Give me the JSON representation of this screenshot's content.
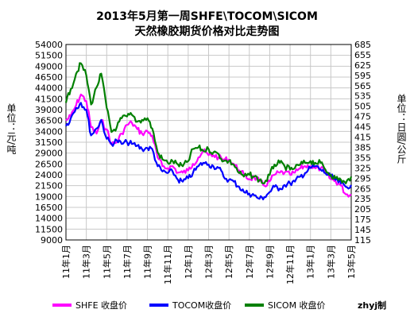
{
  "header": {
    "title_line1": "2013年5月第一周SHFE\\TOCOM\\SICOM",
    "title_line2": "天然橡胶期货价格对比走势图"
  },
  "colors": {
    "shfe": "#ff00ff",
    "tocom": "#0000ff",
    "sicom": "#008000",
    "grid": "#c8c8c8"
  },
  "legend": {
    "shfe_label": "SHFE 收盘价",
    "tocom_label": "TOCOM收盘价",
    "sicom_label": "SICOM 收盘价"
  },
  "credit": "zhyj制",
  "chart_data": {
    "type": "line",
    "title": "2013年5月第一周SHFE\\TOCOM\\SICOM 天然橡胶期货价格对比走势图",
    "ylabel": "单位：元/吨",
    "y2label": "单位：日圆/公斤",
    "ylim": [
      9000,
      54000
    ],
    "y2lim": [
      115,
      685
    ],
    "yticks": [
      9000,
      11500,
      14000,
      16500,
      19000,
      21500,
      24000,
      26500,
      29000,
      31500,
      34000,
      36500,
      39000,
      41500,
      44000,
      46500,
      49000,
      51500,
      54000
    ],
    "y2ticks": [
      115,
      145,
      175,
      205,
      235,
      265,
      295,
      325,
      355,
      385,
      415,
      445,
      475,
      505,
      535,
      565,
      595,
      625,
      655,
      685
    ],
    "xlim": [
      "2011-01",
      "2013-05"
    ],
    "xticks": [
      "11年1月",
      "11年3月",
      "11年5月",
      "11年7月",
      "11年9月",
      "11年11月",
      "12年1月",
      "12年3月",
      "12年5月",
      "12年7月",
      "12年9月",
      "12年11月",
      "13年1月",
      "13年3月",
      "13年5月"
    ],
    "grid": true,
    "legend_position": "bottom",
    "series": [
      {
        "name": "SHFE 收盘价",
        "axis": "left",
        "color": "#ff00ff",
        "points": [
          [
            "2011-01",
            36500
          ],
          [
            "2011-01-15",
            37500
          ],
          [
            "2011-02",
            40000
          ],
          [
            "2011-02-15",
            42500
          ],
          [
            "2011-03",
            41000
          ],
          [
            "2011-03-15",
            35000
          ],
          [
            "2011-04",
            33500
          ],
          [
            "2011-04-15",
            36500
          ],
          [
            "2011-05",
            34500
          ],
          [
            "2011-05-15",
            31000
          ],
          [
            "2011-06",
            31500
          ],
          [
            "2011-06-15",
            33500
          ],
          [
            "2011-07",
            35500
          ],
          [
            "2011-07-15",
            36000
          ],
          [
            "2011-08",
            34500
          ],
          [
            "2011-08-15",
            33500
          ],
          [
            "2011-09",
            34000
          ],
          [
            "2011-09-15",
            33000
          ],
          [
            "2011-10",
            28000
          ],
          [
            "2011-10-15",
            26000
          ],
          [
            "2011-11",
            25500
          ],
          [
            "2011-11-15",
            26000
          ],
          [
            "2011-12",
            24500
          ],
          [
            "2011-12-15",
            24500
          ],
          [
            "2012-01",
            25000
          ],
          [
            "2012-01-15",
            26500
          ],
          [
            "2012-02",
            28000
          ],
          [
            "2012-02-15",
            29500
          ],
          [
            "2012-03",
            28500
          ],
          [
            "2012-03-15",
            28500
          ],
          [
            "2012-04",
            28000
          ],
          [
            "2012-04-15",
            27500
          ],
          [
            "2012-05",
            27500
          ],
          [
            "2012-05-15",
            26500
          ],
          [
            "2012-06",
            25000
          ],
          [
            "2012-06-15",
            24000
          ],
          [
            "2012-07",
            23000
          ],
          [
            "2012-07-15",
            23500
          ],
          [
            "2012-08",
            22500
          ],
          [
            "2012-08-15",
            21500
          ],
          [
            "2012-09",
            22500
          ],
          [
            "2012-09-15",
            24000
          ],
          [
            "2012-10",
            24500
          ],
          [
            "2012-10-15",
            24500
          ],
          [
            "2012-11",
            24000
          ],
          [
            "2012-11-15",
            24500
          ],
          [
            "2012-12",
            25500
          ],
          [
            "2012-12-15",
            26000
          ],
          [
            "2013-01",
            26000
          ],
          [
            "2013-01-15",
            25500
          ],
          [
            "2013-02",
            25500
          ],
          [
            "2013-02-15",
            24500
          ],
          [
            "2013-03",
            23000
          ],
          [
            "2013-03-15",
            22500
          ],
          [
            "2013-04",
            21500
          ],
          [
            "2013-04-15",
            19500
          ],
          [
            "2013-05",
            19500
          ]
        ]
      },
      {
        "name": "TOCOM收盘价",
        "axis": "right",
        "color": "#0000ff",
        "points": [
          [
            "2011-01",
            447
          ],
          [
            "2011-01-15",
            470
          ],
          [
            "2011-02",
            500
          ],
          [
            "2011-02-15",
            515
          ],
          [
            "2011-03",
            495
          ],
          [
            "2011-03-15",
            420
          ],
          [
            "2011-04",
            440
          ],
          [
            "2011-04-15",
            465
          ],
          [
            "2011-05",
            410
          ],
          [
            "2011-05-15",
            395
          ],
          [
            "2011-06",
            405
          ],
          [
            "2011-06-15",
            395
          ],
          [
            "2011-07",
            400
          ],
          [
            "2011-07-15",
            395
          ],
          [
            "2011-08",
            390
          ],
          [
            "2011-08-15",
            380
          ],
          [
            "2011-09",
            383
          ],
          [
            "2011-09-15",
            380
          ],
          [
            "2011-10",
            330
          ],
          [
            "2011-10-15",
            315
          ],
          [
            "2011-11",
            310
          ],
          [
            "2011-11-15",
            315
          ],
          [
            "2011-12",
            290
          ],
          [
            "2011-12-15",
            285
          ],
          [
            "2012-01",
            295
          ],
          [
            "2012-01-15",
            310
          ],
          [
            "2012-02",
            330
          ],
          [
            "2012-02-15",
            340
          ],
          [
            "2012-03",
            335
          ],
          [
            "2012-03-15",
            330
          ],
          [
            "2012-04",
            325
          ],
          [
            "2012-04-15",
            300
          ],
          [
            "2012-05",
            290
          ],
          [
            "2012-05-15",
            285
          ],
          [
            "2012-06",
            270
          ],
          [
            "2012-06-15",
            255
          ],
          [
            "2012-07",
            250
          ],
          [
            "2012-07-15",
            245
          ],
          [
            "2012-08",
            235
          ],
          [
            "2012-08-15",
            240
          ],
          [
            "2012-09",
            255
          ],
          [
            "2012-09-15",
            270
          ],
          [
            "2012-10",
            265
          ],
          [
            "2012-10-15",
            275
          ],
          [
            "2012-11",
            280
          ],
          [
            "2012-11-15",
            285
          ],
          [
            "2012-12",
            300
          ],
          [
            "2012-12-15",
            310
          ],
          [
            "2013-01",
            325
          ],
          [
            "2013-01-15",
            330
          ],
          [
            "2013-02",
            320
          ],
          [
            "2013-02-15",
            310
          ],
          [
            "2013-03",
            300
          ],
          [
            "2013-03-15",
            290
          ],
          [
            "2013-04",
            280
          ],
          [
            "2013-04-15",
            270
          ],
          [
            "2013-05",
            275
          ]
        ]
      },
      {
        "name": "SICOM 收盘价",
        "axis": "right",
        "color": "#008000",
        "points": [
          [
            "2011-01",
            515
          ],
          [
            "2011-01-15",
            555
          ],
          [
            "2011-02",
            600
          ],
          [
            "2011-02-15",
            630
          ],
          [
            "2011-03",
            595
          ],
          [
            "2011-03-15",
            510
          ],
          [
            "2011-04",
            560
          ],
          [
            "2011-04-15",
            600
          ],
          [
            "2011-05",
            500
          ],
          [
            "2011-05-15",
            430
          ],
          [
            "2011-06",
            445
          ],
          [
            "2011-06-15",
            470
          ],
          [
            "2011-07",
            475
          ],
          [
            "2011-07-15",
            480
          ],
          [
            "2011-08",
            460
          ],
          [
            "2011-08-15",
            465
          ],
          [
            "2011-09",
            470
          ],
          [
            "2011-09-15",
            440
          ],
          [
            "2011-10",
            370
          ],
          [
            "2011-10-15",
            350
          ],
          [
            "2011-11",
            340
          ],
          [
            "2011-11-15",
            345
          ],
          [
            "2011-12",
            335
          ],
          [
            "2011-12-15",
            330
          ],
          [
            "2012-01",
            345
          ],
          [
            "2012-01-15",
            380
          ],
          [
            "2012-02",
            385
          ],
          [
            "2012-02-15",
            375
          ],
          [
            "2012-03",
            380
          ],
          [
            "2012-03-15",
            370
          ],
          [
            "2012-04",
            365
          ],
          [
            "2012-04-15",
            345
          ],
          [
            "2012-05",
            345
          ],
          [
            "2012-05-15",
            335
          ],
          [
            "2012-06",
            310
          ],
          [
            "2012-06-15",
            300
          ],
          [
            "2012-07",
            305
          ],
          [
            "2012-07-15",
            300
          ],
          [
            "2012-08",
            290
          ],
          [
            "2012-08-15",
            280
          ],
          [
            "2012-09",
            305
          ],
          [
            "2012-09-15",
            335
          ],
          [
            "2012-10",
            340
          ],
          [
            "2012-10-15",
            330
          ],
          [
            "2012-11",
            320
          ],
          [
            "2012-11-15",
            325
          ],
          [
            "2012-12",
            335
          ],
          [
            "2012-12-15",
            340
          ],
          [
            "2013-01",
            345
          ],
          [
            "2013-01-15",
            340
          ],
          [
            "2013-02",
            340
          ],
          [
            "2013-02-15",
            320
          ],
          [
            "2013-03",
            305
          ],
          [
            "2013-03-15",
            295
          ],
          [
            "2013-04",
            290
          ],
          [
            "2013-04-15",
            280
          ],
          [
            "2013-05",
            300
          ]
        ]
      }
    ]
  }
}
